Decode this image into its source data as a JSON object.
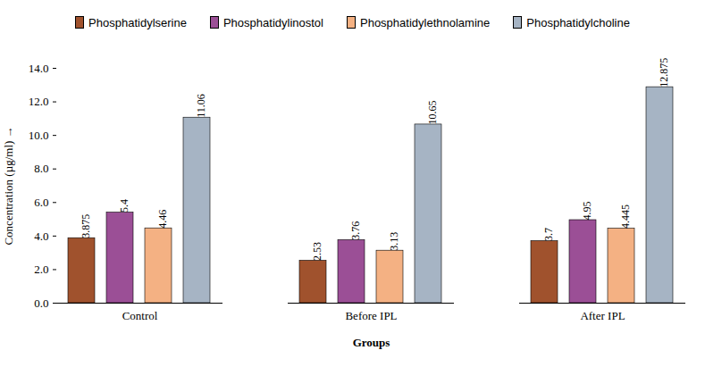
{
  "chart_data": {
    "type": "bar",
    "categories": [
      "Control",
      "Before IPL",
      "After IPL"
    ],
    "series": [
      {
        "name": "Phosphatidylserine",
        "color": "#a0522d",
        "values": [
          3.875,
          2.53,
          3.7
        ]
      },
      {
        "name": "Phosphatidylinostol",
        "color": "#9b4f96",
        "values": [
          5.4,
          3.76,
          4.95
        ]
      },
      {
        "name": "Phosphatidylethnolamine",
        "color": "#f4b183",
        "values": [
          4.46,
          3.13,
          4.445
        ]
      },
      {
        "name": "Phosphatidylcholine",
        "color": "#a6b4c4",
        "values": [
          11.06,
          10.65,
          12.875
        ]
      }
    ],
    "x_label": "Groups",
    "y_label": "Concentration (µg/ml)",
    "ylim": [
      0,
      14
    ],
    "yticks": [
      {
        "value": 0,
        "label": "0.0"
      },
      {
        "value": 2,
        "label": "2.0"
      },
      {
        "value": 4,
        "label": "4.0"
      },
      {
        "value": 6,
        "label": "6.0"
      },
      {
        "value": 8,
        "label": "8.0"
      },
      {
        "value": 10,
        "label": "10.0"
      },
      {
        "value": 12,
        "label": "12.0"
      },
      {
        "value": 14,
        "label": "14.0"
      }
    ],
    "grid": false,
    "legend": "top",
    "data_labels": true
  }
}
